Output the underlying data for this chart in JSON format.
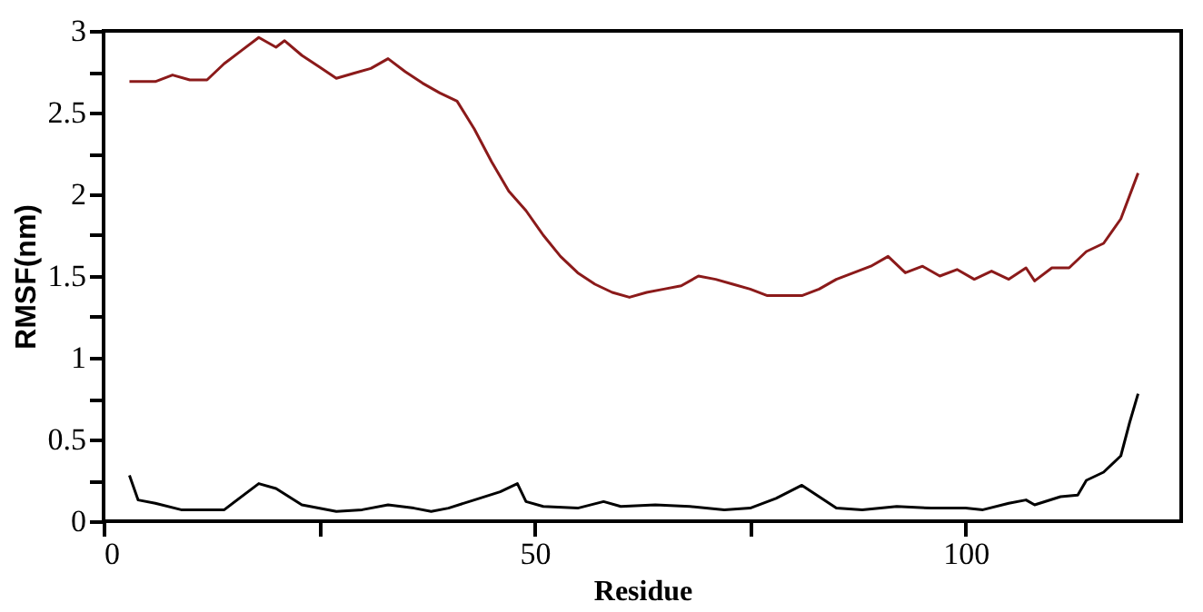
{
  "chart_data": {
    "type": "line",
    "xlabel": "Residue",
    "ylabel": "RMSF(nm)",
    "xlim": [
      0,
      125
    ],
    "ylim": [
      0,
      3
    ],
    "xticks": [
      0,
      {
        "value": 25,
        "label": null
      },
      50,
      {
        "value": 75,
        "label": null
      },
      100
    ],
    "yticks": [
      0,
      {
        "value": 0.25,
        "label": null
      },
      0.5,
      {
        "value": 0.75,
        "label": null
      },
      1,
      {
        "value": 1.25,
        "label": null
      },
      1.5,
      {
        "value": 1.75,
        "label": null
      },
      2,
      {
        "value": 2.25,
        "label": null
      },
      2.5,
      {
        "value": 2.75,
        "label": null
      },
      3
    ],
    "grid": false,
    "marker": "none",
    "line_style": "solid",
    "series": [
      {
        "color": "#8b1a1a",
        "x": [
          3,
          6,
          8,
          10,
          12,
          14,
          16,
          18,
          20,
          21,
          23,
          25,
          27,
          29,
          31,
          33,
          35,
          37,
          39,
          41,
          43,
          45,
          47,
          49,
          51,
          53,
          55,
          57,
          59,
          61,
          63,
          65,
          67,
          69,
          71,
          73,
          75,
          77,
          79,
          81,
          83,
          85,
          87,
          89,
          91,
          93,
          95,
          97,
          99,
          101,
          103,
          105,
          107,
          108,
          110,
          112,
          114,
          116,
          118,
          120
        ],
        "values": [
          2.69,
          2.69,
          2.73,
          2.7,
          2.7,
          2.8,
          2.88,
          2.96,
          2.9,
          2.94,
          2.85,
          2.78,
          2.71,
          2.74,
          2.77,
          2.83,
          2.75,
          2.68,
          2.62,
          2.57,
          2.4,
          2.2,
          2.02,
          1.9,
          1.75,
          1.62,
          1.52,
          1.45,
          1.4,
          1.37,
          1.4,
          1.42,
          1.44,
          1.5,
          1.48,
          1.45,
          1.42,
          1.38,
          1.38,
          1.38,
          1.42,
          1.48,
          1.52,
          1.56,
          1.62,
          1.52,
          1.56,
          1.5,
          1.54,
          1.48,
          1.53,
          1.48,
          1.55,
          1.47,
          1.55,
          1.55,
          1.65,
          1.7,
          1.85,
          2.13
        ]
      },
      {
        "color": "#000000",
        "x": [
          3,
          4,
          6,
          9,
          14,
          18,
          20,
          23,
          27,
          30,
          33,
          36,
          38,
          40,
          43,
          46,
          48,
          49,
          51,
          55,
          58,
          60,
          64,
          68,
          72,
          75,
          78,
          81,
          83,
          85,
          88,
          92,
          96,
          100,
          102,
          105,
          107,
          108,
          111,
          113,
          114,
          116,
          118,
          119,
          120
        ],
        "values": [
          0.28,
          0.13,
          0.11,
          0.07,
          0.07,
          0.23,
          0.2,
          0.1,
          0.06,
          0.07,
          0.1,
          0.08,
          0.06,
          0.08,
          0.13,
          0.18,
          0.23,
          0.12,
          0.09,
          0.08,
          0.12,
          0.09,
          0.1,
          0.09,
          0.07,
          0.08,
          0.14,
          0.22,
          0.15,
          0.08,
          0.07,
          0.09,
          0.08,
          0.08,
          0.07,
          0.11,
          0.13,
          0.1,
          0.15,
          0.16,
          0.25,
          0.3,
          0.4,
          0.6,
          0.78
        ]
      }
    ]
  }
}
